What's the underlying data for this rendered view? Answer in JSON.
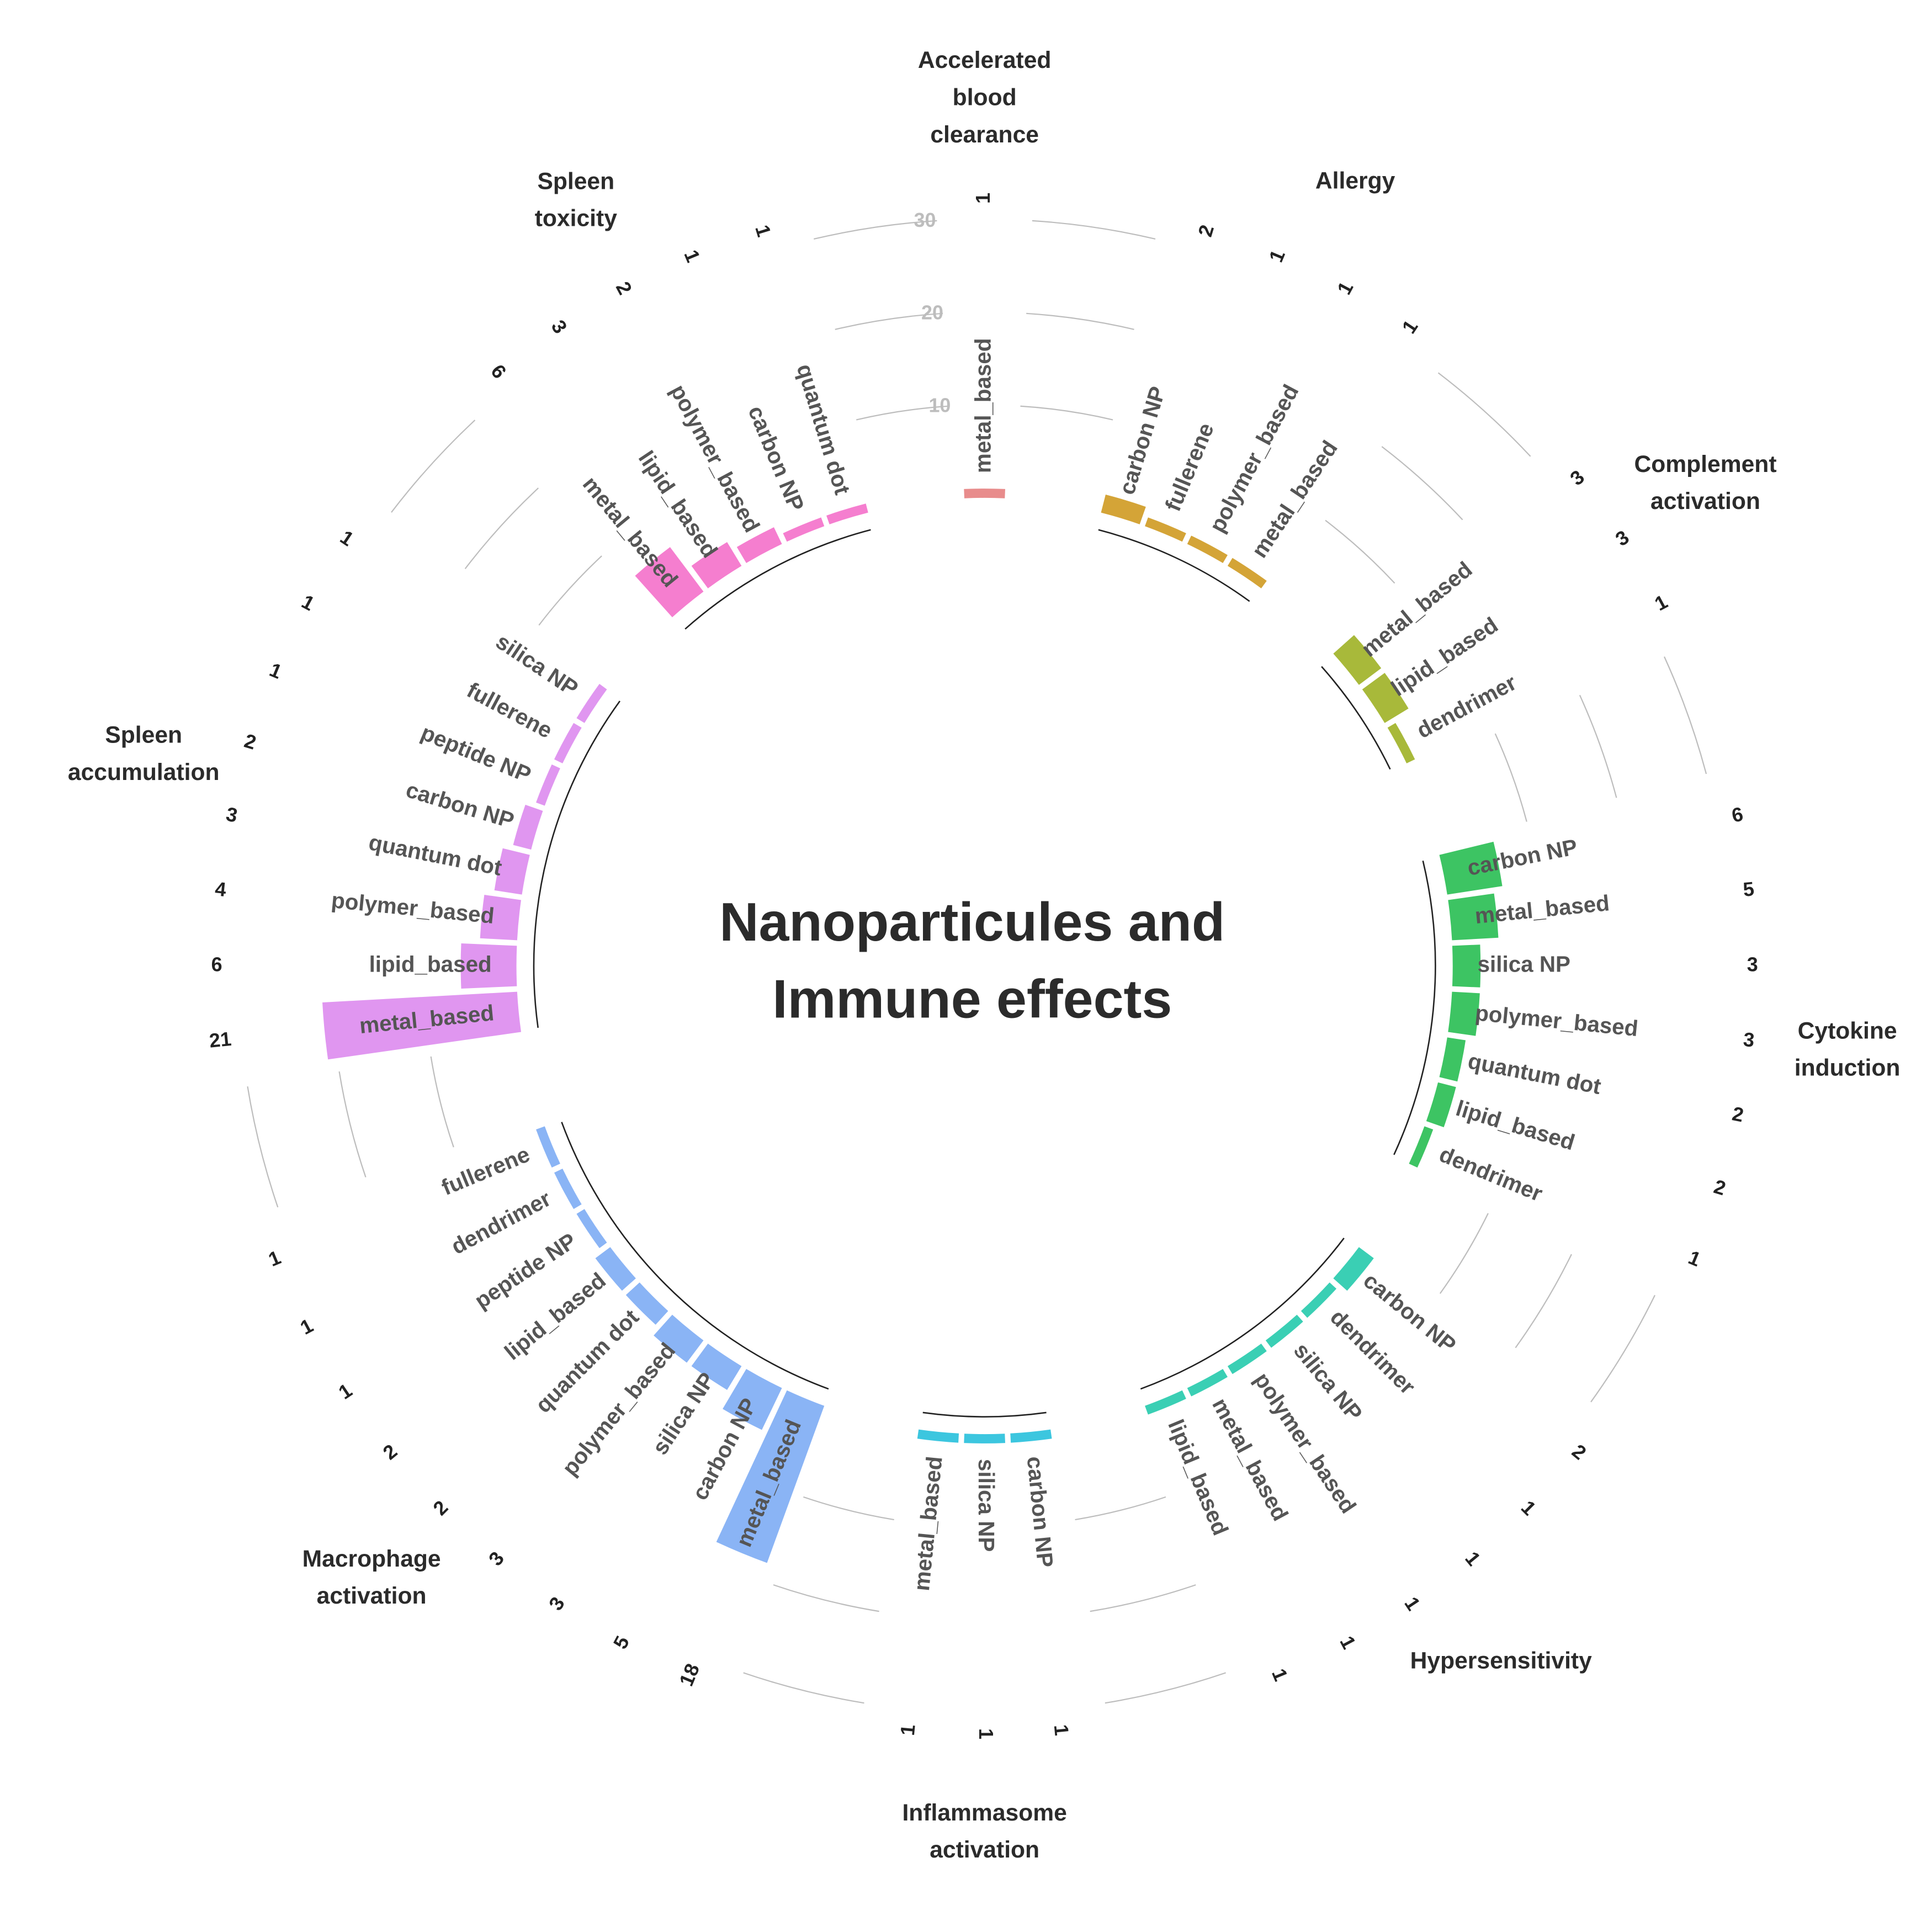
{
  "chart_data": {
    "type": "bar",
    "layout": "circular-grouped",
    "title": "Nanoparticules and\nImmune effects",
    "radial_ticks": [
      10,
      20,
      30
    ],
    "groups": [
      {
        "name": "Accelerated\nblood\nclearance",
        "color": "#E88C8C",
        "bars": [
          {
            "category": "metal_based",
            "value": 1
          }
        ]
      },
      {
        "name": "Allergy",
        "color": "#D4A437",
        "bars": [
          {
            "category": "carbon NP",
            "value": 2
          },
          {
            "category": "fullerene",
            "value": 1
          },
          {
            "category": "polymer_based",
            "value": 1
          },
          {
            "category": "metal_based",
            "value": 1
          }
        ]
      },
      {
        "name": "Complement\nactivation",
        "color": "#A8B93A",
        "bars": [
          {
            "category": "metal_based",
            "value": 3
          },
          {
            "category": "lipid_based",
            "value": 3
          },
          {
            "category": "dendrimer",
            "value": 1
          }
        ]
      },
      {
        "name": "Cytokine\ninduction",
        "color": "#3DC463",
        "bars": [
          {
            "category": "carbon NP",
            "value": 6
          },
          {
            "category": "metal_based",
            "value": 5
          },
          {
            "category": "silica NP",
            "value": 3
          },
          {
            "category": "polymer_based",
            "value": 3
          },
          {
            "category": "quantum dot",
            "value": 2
          },
          {
            "category": "lipid_based",
            "value": 2
          },
          {
            "category": "dendrimer",
            "value": 1
          }
        ]
      },
      {
        "name": "Hypersensitivity",
        "color": "#3ACFB4",
        "bars": [
          {
            "category": "carbon NP",
            "value": 2
          },
          {
            "category": "dendrimer",
            "value": 1
          },
          {
            "category": "silica NP",
            "value": 1
          },
          {
            "category": "polymer_based",
            "value": 1
          },
          {
            "category": "metal_based",
            "value": 1
          },
          {
            "category": "lipid_based",
            "value": 1
          }
        ]
      },
      {
        "name": "Inflammasome\nactivation",
        "color": "#3CC6DF",
        "bars": [
          {
            "category": "carbon NP",
            "value": 1
          },
          {
            "category": "silica NP",
            "value": 1
          },
          {
            "category": "metal_based",
            "value": 1
          }
        ]
      },
      {
        "name": "Macrophage\nactivation",
        "color": "#8AB4F5",
        "bars": [
          {
            "category": "metal_based",
            "value": 18
          },
          {
            "category": "carbon NP",
            "value": 5
          },
          {
            "category": "silica NP",
            "value": 3
          },
          {
            "category": "polymer_based",
            "value": 3
          },
          {
            "category": "quantum dot",
            "value": 2
          },
          {
            "category": "lipid_based",
            "value": 2
          },
          {
            "category": "peptide NP",
            "value": 1
          },
          {
            "category": "dendrimer",
            "value": 1
          },
          {
            "category": "fullerene",
            "value": 1
          }
        ]
      },
      {
        "name": "Spleen\naccumulation",
        "color": "#E096F0",
        "bars": [
          {
            "category": "metal_based",
            "value": 21
          },
          {
            "category": "lipid_based",
            "value": 6
          },
          {
            "category": "polymer_based",
            "value": 4
          },
          {
            "category": "quantum dot",
            "value": 3
          },
          {
            "category": "carbon NP",
            "value": 2
          },
          {
            "category": "peptide NP",
            "value": 1
          },
          {
            "category": "fullerene",
            "value": 1
          },
          {
            "category": "silica NP",
            "value": 1
          }
        ]
      },
      {
        "name": "Spleen\ntoxicity",
        "color": "#F57ECF",
        "bars": [
          {
            "category": "metal_based",
            "value": 6
          },
          {
            "category": "lipid_based",
            "value": 3
          },
          {
            "category": "polymer_based",
            "value": 2
          },
          {
            "category": "carbon NP",
            "value": 1
          },
          {
            "category": "quantum dot",
            "value": 1
          }
        ]
      }
    ]
  }
}
